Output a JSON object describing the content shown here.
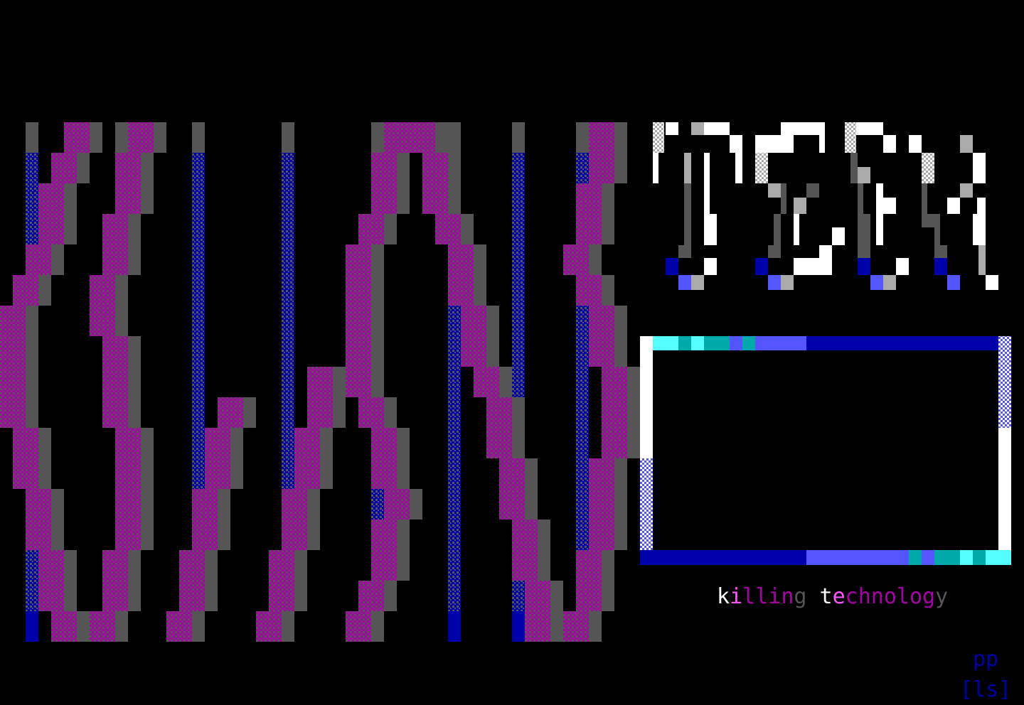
{
  "logo_text": "TEK",
  "tagline": {
    "text": "killing technology",
    "char_colors": [
      "#ffffff",
      "#ff55ff",
      "#aa00aa",
      "#aa00aa",
      "#aa00aa",
      "#aa00aa",
      "#555555",
      " ",
      "#ffffff",
      "#ff55ff",
      "#aa00aa",
      "#aa00aa",
      "#aa00aa",
      "#aa00aa",
      "#aa00aa",
      "#aa00aa",
      "#aa00aa",
      "#555555"
    ]
  },
  "credits": {
    "line1": "pp",
    "line2": "[ls]"
  },
  "colors": {
    "background": "#000000",
    "magenta": "#aa00aa",
    "bright_magenta": "#ff55ff",
    "blue": "#0000aa",
    "light_blue": "#5555ff",
    "cyan": "#55ffff",
    "dark_cyan": "#00aaaa",
    "gray": "#555555",
    "light_gray": "#aaaaaa",
    "white": "#ffffff"
  }
}
